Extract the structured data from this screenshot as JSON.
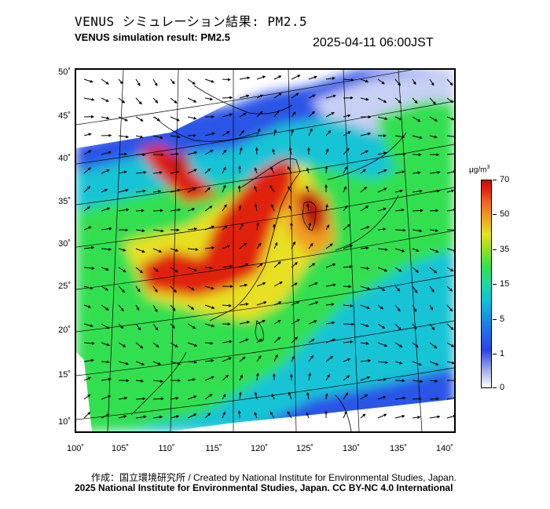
{
  "header": {
    "title_jp": "VENUS シミュレーション結果: PM2.5",
    "title_en": "VENUS simulation result: PM2.5",
    "timestamp": "2025-04-11 06:00JST"
  },
  "map": {
    "lat_ticks": [
      "50˚",
      "45˚",
      "40˚",
      "35˚",
      "30˚",
      "25˚",
      "20˚",
      "15˚",
      "10˚"
    ],
    "lon_ticks": [
      "100˚",
      "105˚",
      "110˚",
      "115˚",
      "120˚",
      "125˚",
      "130˚",
      "135˚",
      "140˚"
    ],
    "lat_range": [
      10,
      50
    ],
    "lon_range": [
      100,
      140
    ],
    "variable": "PM2.5",
    "overlay": "wind vectors"
  },
  "colorbar": {
    "unit_base": "μg/m",
    "unit_exp": "3",
    "labels": [
      "70",
      "50",
      "35",
      "15",
      "5",
      "1",
      "0"
    ],
    "colors": {
      "low": "#ffffff",
      "blue": "#2a44e6",
      "cyan": "#10c0d8",
      "green": "#30e050",
      "yellow": "#e8e020",
      "orange": "#f0a020",
      "red": "#e02010"
    }
  },
  "footer": {
    "credit_line": "作成：国立環境研究所 / Created by National Institute for Environmental Studies, Japan.",
    "license_line": "2025 National Institute for Environmental Studies, Japan. CC BY-NC 4.0 International"
  }
}
